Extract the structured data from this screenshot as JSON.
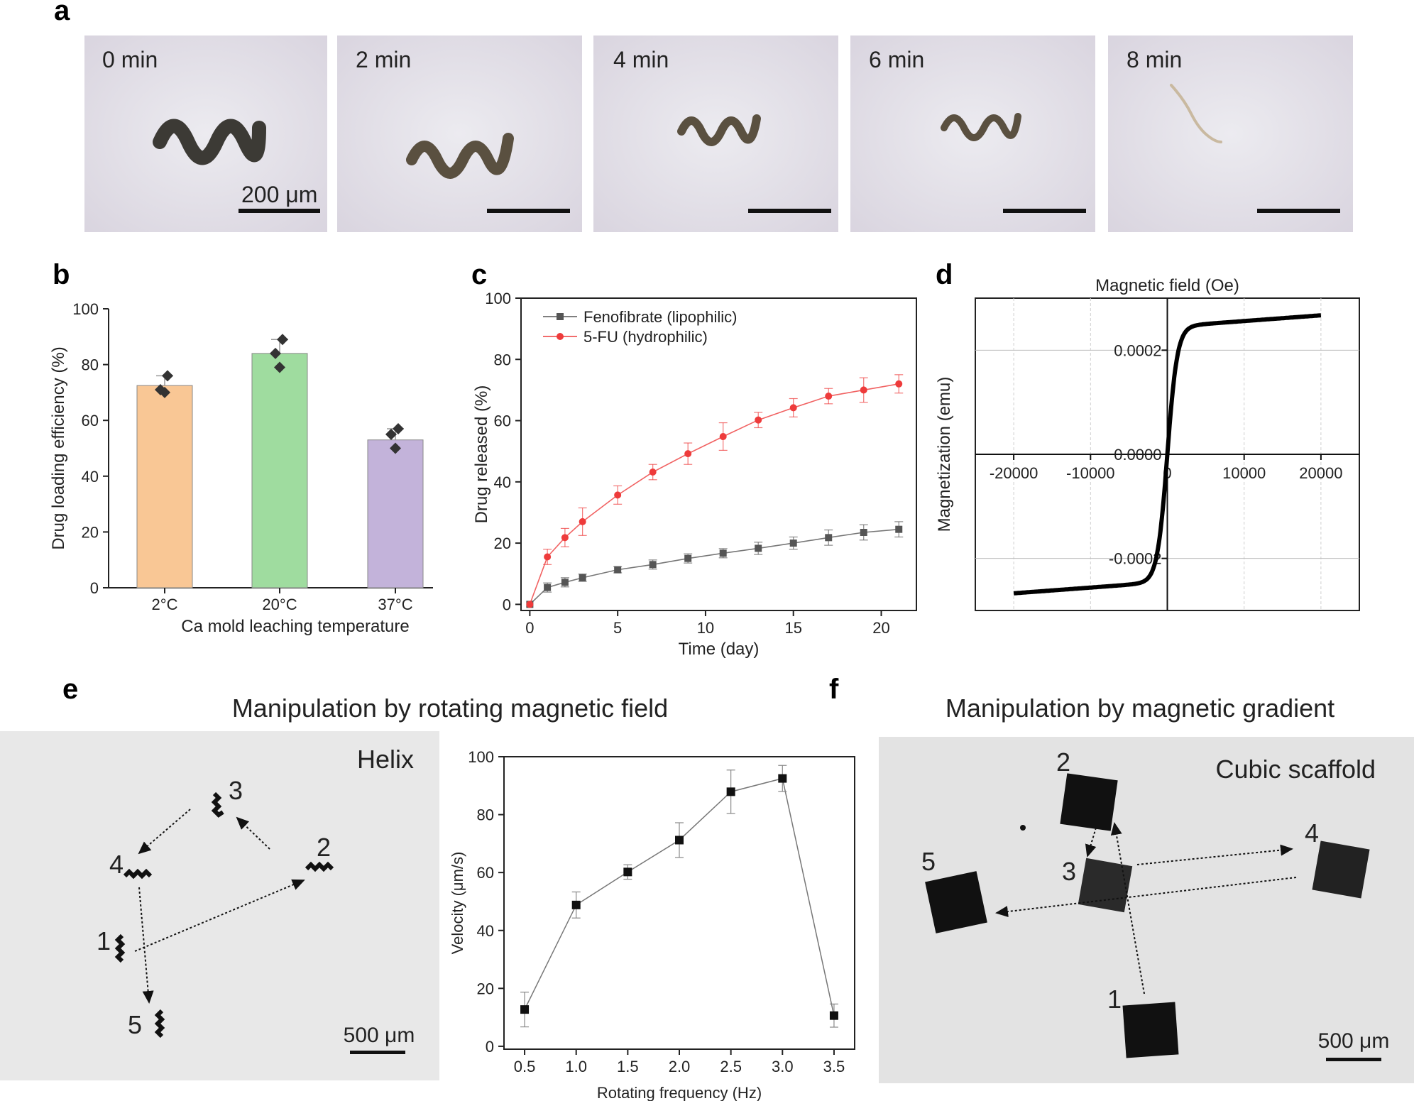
{
  "panel_letters": {
    "a": "a",
    "b": "b",
    "c": "c",
    "d": "d",
    "e": "e",
    "f": "f"
  },
  "panel_a": {
    "frames": [
      "0 min",
      "2 min",
      "4 min",
      "6 min",
      "8 min"
    ],
    "scale_label": "200 μm"
  },
  "panel_e": {
    "title": "Manipulation by rotating magnetic field",
    "photo_label": "Helix",
    "scale_label": "500 μm",
    "markers": [
      "1",
      "2",
      "3",
      "4",
      "5"
    ]
  },
  "panel_f": {
    "title": "Manipulation by magnetic gradient",
    "photo_label": "Cubic scaffold",
    "scale_label": "500 μm",
    "markers": [
      "1",
      "2",
      "3",
      "4",
      "5"
    ]
  },
  "chart_data": [
    {
      "id": "b",
      "type": "bar",
      "categories": [
        "2°C",
        "20°C",
        "37°C"
      ],
      "values": [
        72.5,
        84,
        53
      ],
      "errors": [
        3.5,
        5,
        4
      ],
      "points": [
        [
          76,
          71,
          70
        ],
        [
          89,
          84,
          79
        ],
        [
          57,
          55,
          50
        ]
      ],
      "colors": [
        "#f9c795",
        "#9fdc9f",
        "#c3b3da"
      ],
      "xlabel": "Ca mold leaching temperature",
      "ylabel": "Drug loading efficiency (%)",
      "ylim": [
        0,
        100
      ],
      "yticks": [
        "0",
        "20",
        "40",
        "60",
        "80",
        "100"
      ]
    },
    {
      "id": "c",
      "type": "line",
      "xlabel": "Time (day)",
      "ylabel": "Drug released (%)",
      "xlim": [
        -0.5,
        22
      ],
      "ylim": [
        -2,
        100
      ],
      "xticks": [
        "0",
        "5",
        "10",
        "15",
        "20"
      ],
      "yticks": [
        "0",
        "20",
        "40",
        "60",
        "80",
        "100"
      ],
      "series": [
        {
          "name": "Fenofibrate (lipophilic)",
          "color": "#555555",
          "marker": "square",
          "x": [
            0,
            1,
            2,
            3,
            5,
            7,
            9,
            11,
            13,
            15,
            17,
            19,
            21
          ],
          "y": [
            0,
            5.5,
            7.2,
            8.7,
            11.3,
            13,
            15,
            16.7,
            18.3,
            20,
            21.8,
            23.5,
            24.5
          ],
          "err": [
            0,
            1.5,
            1.5,
            1.2,
            1,
            1.5,
            1.5,
            1.5,
            2,
            2,
            2.5,
            2.5,
            2.5
          ]
        },
        {
          "name": "5-FU (hydrophilic)",
          "color": "#ee3b3b",
          "marker": "circle",
          "x": [
            0,
            1,
            2,
            3,
            5,
            7,
            9,
            11,
            13,
            15,
            17,
            19,
            21
          ],
          "y": [
            0,
            15.5,
            21.8,
            27,
            35.7,
            43.2,
            49.2,
            54.8,
            60.2,
            64.2,
            68,
            70,
            72
          ],
          "err": [
            0,
            2.5,
            3,
            4.5,
            3,
            2.5,
            3.5,
            4.5,
            2.5,
            3,
            2.5,
            4,
            3
          ]
        }
      ]
    },
    {
      "id": "d",
      "type": "line",
      "title": "Magnetic field (Oe)",
      "ylabel": "Magnetization (emu)",
      "xlim": [
        -25000,
        25000
      ],
      "ylim": [
        -0.0003,
        0.0003
      ],
      "xticks": [
        "-20000",
        "-10000",
        "0",
        "10000",
        "20000"
      ],
      "yticks": [
        "-0.0002",
        "0.0000",
        "0.0002"
      ],
      "ms": 0.000245,
      "curve_scale": 1300,
      "slope": 1.1e-09,
      "x_range": [
        -20000,
        20000
      ]
    },
    {
      "id": "e-chart",
      "type": "line",
      "xlabel": "Rotating frequency (Hz)",
      "ylabel": "Velocity (μm/s)",
      "xlim": [
        0.3,
        3.7
      ],
      "ylim": [
        -1,
        100
      ],
      "xticks": [
        "0.5",
        "1.0",
        "1.5",
        "2.0",
        "2.5",
        "3.0",
        "3.5"
      ],
      "yticks": [
        "0",
        "20",
        "40",
        "60",
        "80",
        "100"
      ],
      "x": [
        0.5,
        1.0,
        1.5,
        2.0,
        2.5,
        3.0,
        3.5
      ],
      "y": [
        12.7,
        48.8,
        60.2,
        71.2,
        87.9,
        92.5,
        10.6
      ],
      "err": [
        6,
        4.5,
        2.5,
        6,
        7.5,
        4.5,
        4
      ]
    }
  ]
}
